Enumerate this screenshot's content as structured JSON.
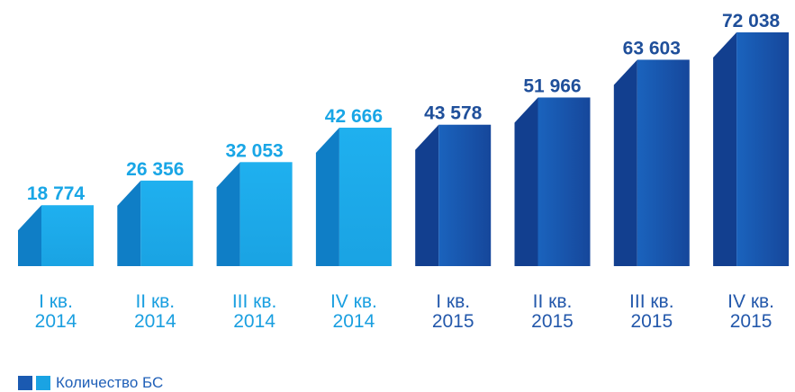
{
  "chart_data": {
    "type": "bar",
    "categories": [
      {
        "quarter": "I кв.",
        "year": "2014"
      },
      {
        "quarter": "II кв.",
        "year": "2014"
      },
      {
        "quarter": "III кв.",
        "year": "2014"
      },
      {
        "quarter": "IV кв.",
        "year": "2014"
      },
      {
        "quarter": "I кв.",
        "year": "2015"
      },
      {
        "quarter": "II кв.",
        "year": "2015"
      },
      {
        "quarter": "III кв.",
        "year": "2015"
      },
      {
        "quarter": "IV кв.",
        "year": "2015"
      }
    ],
    "values": [
      18774,
      26356,
      32053,
      42666,
      43578,
      51966,
      63603,
      72038
    ],
    "value_labels": [
      "18 774",
      "26 356",
      "32 053",
      "42 666",
      "43 578",
      "51 966",
      "63 603",
      "72 038"
    ],
    "series": [
      {
        "name": "Количество БС",
        "values": [
          18774,
          26356,
          32053,
          42666,
          43578,
          51966,
          63603,
          72038
        ]
      }
    ],
    "colors": {
      "year_2014_front": "#1aa3e3",
      "year_2014_side": "#0f7ec6",
      "year_2014_label": "#19a6e6",
      "year_2015_front": "#1656b0",
      "year_2015_side": "#123f8f",
      "year_2015_label": "#1f4f9a",
      "axis_text_2014": "#1a9fe0",
      "axis_text_2015": "#2358ab"
    },
    "legend": {
      "label": "Количество БС",
      "position": "bottom-left"
    }
  }
}
